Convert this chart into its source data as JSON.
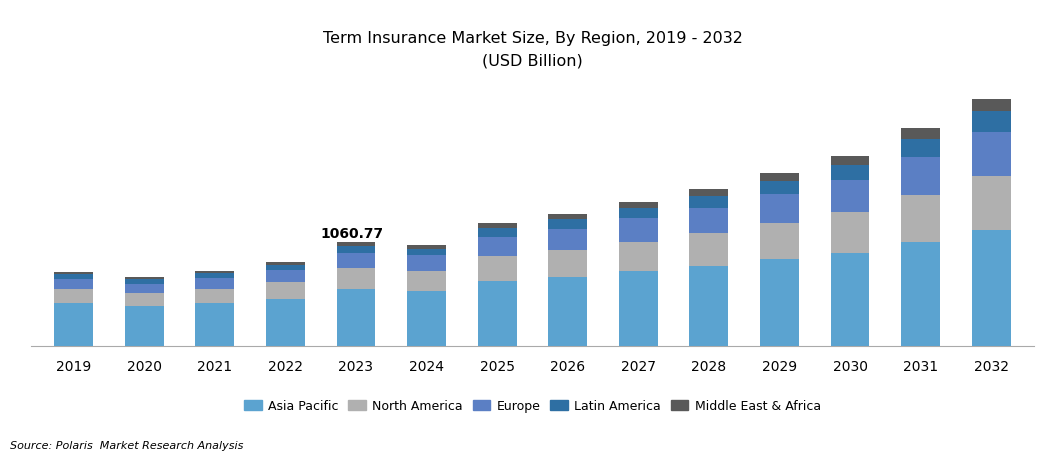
{
  "title_line1": "Term Insurance Market Size, By Region, 2019 - 2032",
  "title_line2": "(USD Billion)",
  "source": "Source: Polaris  Market Research Analysis",
  "years": [
    2019,
    2020,
    2021,
    2022,
    2023,
    2024,
    2025,
    2026,
    2027,
    2028,
    2029,
    2030,
    2031,
    2032
  ],
  "regions": [
    "Asia Pacific",
    "North America",
    "Europe",
    "Latin America",
    "Middle East & Africa"
  ],
  "colors": [
    "#5BA3D0",
    "#B0B0B0",
    "#5B7FC4",
    "#2E6FA3",
    "#595959"
  ],
  "data": {
    "Asia Pacific": [
      430,
      400,
      435,
      480,
      580,
      560,
      660,
      700,
      760,
      810,
      880,
      950,
      1060,
      1180
    ],
    "North America": [
      145,
      135,
      145,
      165,
      210,
      205,
      255,
      275,
      300,
      335,
      375,
      415,
      480,
      550
    ],
    "Europe": [
      105,
      98,
      108,
      122,
      157,
      155,
      195,
      215,
      238,
      262,
      295,
      330,
      388,
      448
    ],
    "Latin America": [
      48,
      43,
      48,
      53,
      68,
      66,
      88,
      97,
      108,
      118,
      133,
      152,
      183,
      212
    ],
    "Middle East & Africa": [
      28,
      26,
      30,
      33,
      46,
      44,
      52,
      58,
      64,
      70,
      80,
      91,
      108,
      128
    ]
  },
  "annotation_year": 2023,
  "annotation_value": "1060.77",
  "ylim": [
    0,
    2700
  ],
  "bar_width": 0.55,
  "background_color": "#ffffff",
  "title_fontsize": 11.5,
  "legend_fontsize": 9,
  "tick_fontsize": 10,
  "annotation_fontsize": 10
}
